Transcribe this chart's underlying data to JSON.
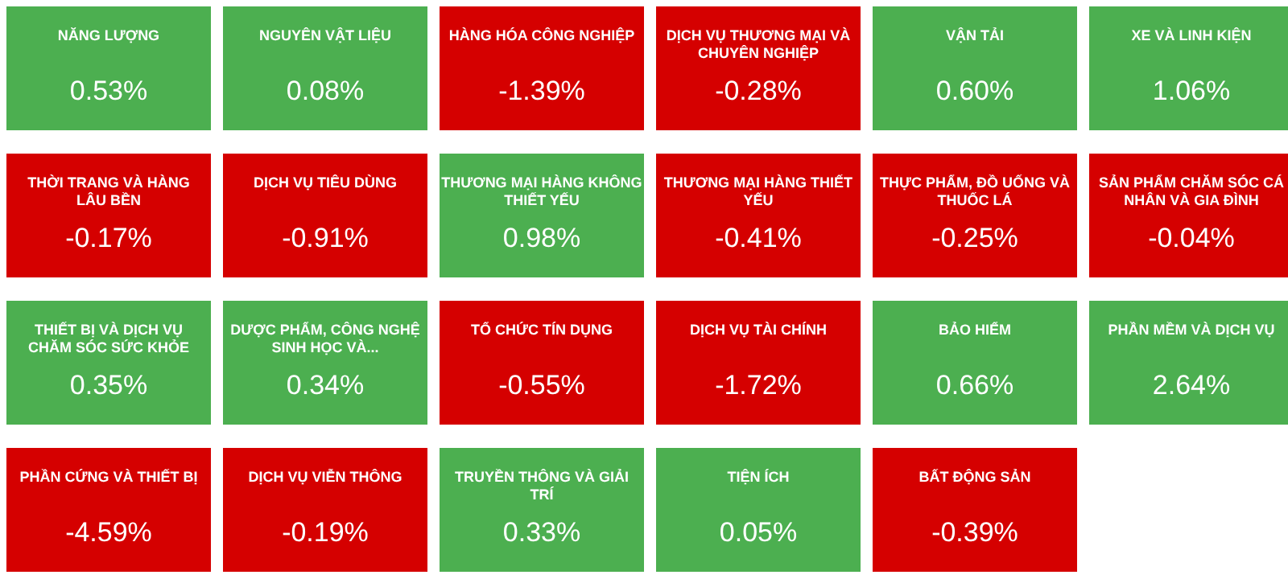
{
  "chart_data": {
    "type": "other",
    "categories": [
      "NĂNG LƯỢNG",
      "NGUYÊN VẬT LIỆU",
      "HÀNG HÓA CÔNG NGHIỆP",
      "DỊCH VỤ THƯƠNG MẠI VÀ CHUYÊN NGHIỆP",
      "VẬN TẢI",
      "XE VÀ LINH KIỆN",
      "THỜI TRANG VÀ HÀNG LÂU BỀN",
      "DỊCH VỤ TIÊU DÙNG",
      "THƯƠNG MẠI HÀNG KHÔNG THIẾT YẾU",
      "THƯƠNG MẠI HÀNG THIẾT YẾU",
      "THỰC PHẨM, ĐỒ UỐNG VÀ THUỐC LÁ",
      "SẢN PHẨM CHĂM SÓC CÁ NHÂN VÀ GIA ĐÌNH",
      "THIẾT BỊ VÀ DỊCH VỤ CHĂM SÓC SỨC KHỎE",
      "DƯỢC PHẨM, CÔNG NGHỆ SINH HỌC VÀ...",
      "TỔ CHỨC TÍN DỤNG",
      "DỊCH VỤ TÀI CHÍNH",
      "BẢO HIỂM",
      "PHẦN MỀM VÀ DỊCH VỤ",
      "PHẦN CỨNG VÀ THIẾT BỊ",
      "DỊCH VỤ VIỄN THÔNG",
      "TRUYỀN THÔNG VÀ GIẢI TRÍ",
      "TIỆN ÍCH",
      "BẤT ĐỘNG SẢN"
    ],
    "values": [
      0.53,
      0.08,
      -1.39,
      -0.28,
      0.6,
      1.06,
      -0.17,
      -0.91,
      0.98,
      -0.41,
      -0.25,
      -0.04,
      0.35,
      0.34,
      -0.55,
      -1.72,
      0.66,
      2.64,
      -4.59,
      -0.19,
      0.33,
      0.05,
      -0.39
    ],
    "value_labels": [
      "0.53%",
      "0.08%",
      "-1.39%",
      "-0.28%",
      "0.60%",
      "1.06%",
      "-0.17%",
      "-0.91%",
      "0.98%",
      "-0.41%",
      "-0.25%",
      "-0.04%",
      "0.35%",
      "0.34%",
      "-0.55%",
      "-1.72%",
      "0.66%",
      "2.64%",
      "-4.59%",
      "-0.19%",
      "0.33%",
      "0.05%",
      "-0.39%"
    ],
    "colors": [
      "#4caf50",
      "#4caf50",
      "#d50000",
      "#d50000",
      "#4caf50",
      "#4caf50",
      "#d50000",
      "#d50000",
      "#4caf50",
      "#d50000",
      "#d50000",
      "#d50000",
      "#4caf50",
      "#4caf50",
      "#d50000",
      "#d50000",
      "#4caf50",
      "#4caf50",
      "#d50000",
      "#d50000",
      "#4caf50",
      "#4caf50",
      "#d50000"
    ]
  }
}
